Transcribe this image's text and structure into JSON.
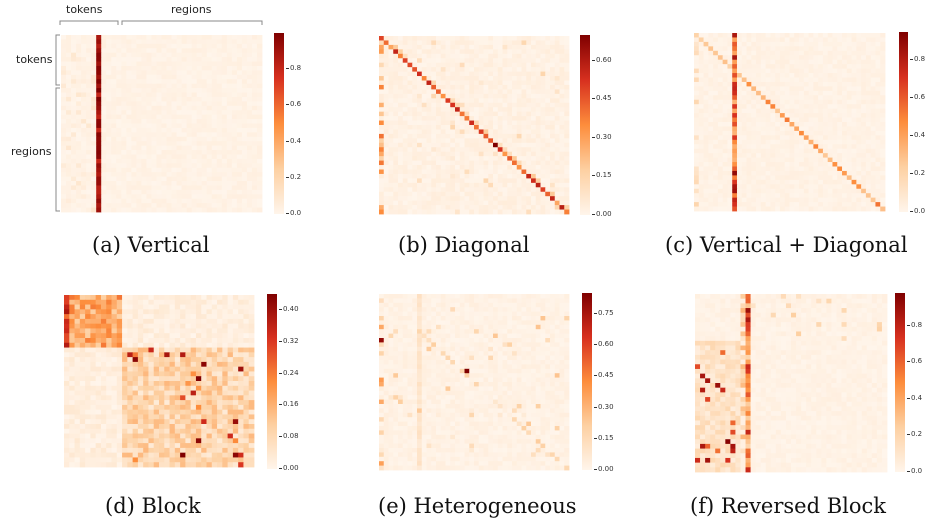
{
  "colors": {
    "low": "#fff5eb",
    "mid": "#fd8d3c",
    "high": "#7f0000",
    "caption": "#111111"
  },
  "annotations": {
    "top_tokens": "tokens",
    "top_regions": "regions",
    "left_tokens": "tokens",
    "left_regions": "regions"
  },
  "chart_data": [
    {
      "type": "heatmap",
      "title": "(a) Vertical",
      "pattern": "vertical",
      "n_tokens": 8,
      "size": 40,
      "colorbar": {
        "min": 0,
        "max": 1.0,
        "ticks": [
          "0.0",
          "0.2",
          "0.4",
          "0.6",
          "0.8"
        ]
      }
    },
    {
      "type": "heatmap",
      "title": "(b) Diagonal",
      "pattern": "diagonal",
      "n_tokens": 8,
      "size": 40,
      "colorbar": {
        "min": 0,
        "max": 0.7,
        "ticks": [
          "0.00",
          "0.15",
          "0.30",
          "0.45",
          "0.60"
        ]
      }
    },
    {
      "type": "heatmap",
      "title": "(c) Vertical + Diagonal",
      "pattern": "vertdiag",
      "n_tokens": 8,
      "size": 40,
      "colorbar": {
        "min": 0,
        "max": 0.95,
        "ticks": [
          "0.0",
          "0.2",
          "0.4",
          "0.6",
          "0.8"
        ]
      }
    },
    {
      "type": "heatmap",
      "title": "(d) Block",
      "pattern": "block",
      "n_tokens": 11,
      "size": 36,
      "colorbar": {
        "min": 0,
        "max": 0.44,
        "ticks": [
          "0.00",
          "0.08",
          "0.16",
          "0.24",
          "0.32",
          "0.40"
        ]
      }
    },
    {
      "type": "heatmap",
      "title": "(e) Heterogeneous",
      "pattern": "hetero",
      "n_tokens": 8,
      "size": 40,
      "colorbar": {
        "min": 0,
        "max": 0.85,
        "ticks": [
          "0.00",
          "0.15",
          "0.30",
          "0.45",
          "0.60",
          "0.75"
        ]
      }
    },
    {
      "type": "heatmap",
      "title": "(f) Reversed Block",
      "pattern": "reversed",
      "n_tokens": 10,
      "size": 38,
      "colorbar": {
        "min": 0,
        "max": 0.98,
        "ticks": [
          "0.0",
          "0.2",
          "0.4",
          "0.6",
          "0.8"
        ]
      }
    }
  ]
}
